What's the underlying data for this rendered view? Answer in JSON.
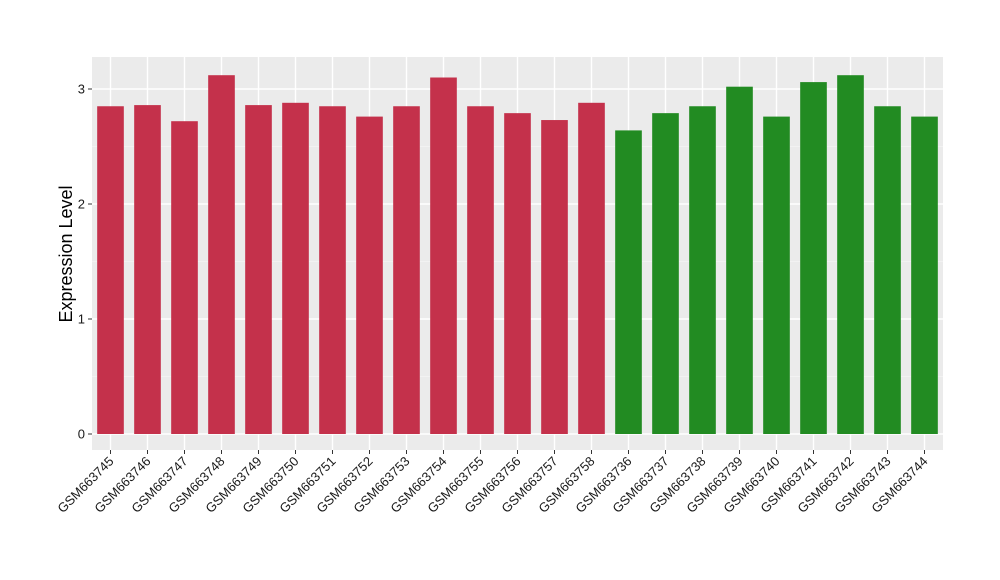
{
  "chart_data": {
    "type": "bar",
    "title": "",
    "xlabel": "",
    "ylabel": "Expression Level",
    "ylim": [
      0,
      3.2
    ],
    "yticks": [
      0,
      1,
      2,
      3
    ],
    "grid": true,
    "background": "#ebebeb",
    "categories": [
      "GSM663745",
      "GSM663746",
      "GSM663747",
      "GSM663748",
      "GSM663749",
      "GSM663750",
      "GSM663751",
      "GSM663752",
      "GSM663753",
      "GSM663754",
      "GSM663755",
      "GSM663756",
      "GSM663757",
      "GSM663758",
      "GSM663736",
      "GSM663737",
      "GSM663738",
      "GSM663739",
      "GSM663740",
      "GSM663741",
      "GSM663742",
      "GSM663743",
      "GSM663744"
    ],
    "values": [
      2.85,
      2.86,
      2.72,
      3.12,
      2.86,
      2.88,
      2.85,
      2.76,
      2.85,
      3.1,
      2.85,
      2.79,
      2.73,
      2.88,
      2.64,
      2.79,
      2.85,
      3.02,
      2.76,
      3.06,
      3.12,
      2.85,
      2.76
    ],
    "group_sizes": [
      14,
      9
    ],
    "group_colors": [
      "#c4314b",
      "#228b22"
    ]
  }
}
